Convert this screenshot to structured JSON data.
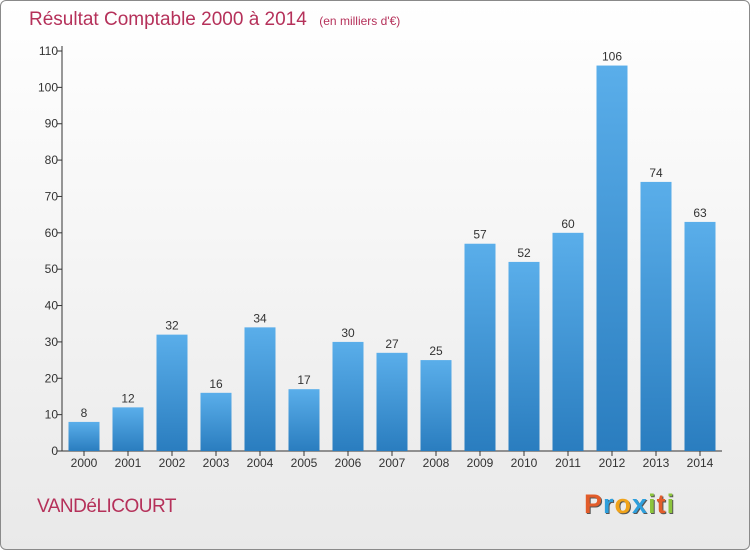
{
  "chart_data": {
    "type": "bar",
    "title": "Résultat Comptable 2000 à 2014",
    "subtitle": "(en milliers d'€)",
    "categories": [
      "2000",
      "2001",
      "2002",
      "2003",
      "2004",
      "2005",
      "2006",
      "2007",
      "2008",
      "2009",
      "2010",
      "2011",
      "2012",
      "2013",
      "2014"
    ],
    "values": [
      8,
      12,
      32,
      16,
      34,
      17,
      30,
      27,
      25,
      57,
      52,
      60,
      106,
      74,
      63
    ],
    "ylim": [
      0,
      110
    ],
    "yticks": [
      0,
      10,
      20,
      30,
      40,
      50,
      60,
      70,
      80,
      90,
      100,
      110
    ],
    "grid": false,
    "xlabel": "",
    "ylabel": ""
  },
  "commune": "VANDéLICOURT",
  "brand": {
    "letters": [
      "P",
      "r",
      "o",
      "x",
      "i",
      "t",
      "i"
    ],
    "colors": [
      "#e25c2a",
      "#2e9fdc",
      "#f0a31a",
      "#2e9fdc",
      "#8cc43d",
      "#e25c2a",
      "#8cc43d"
    ]
  },
  "colors": {
    "accent": "#b5315a",
    "bar_light": "#5aaeea",
    "bar_dark": "#2a7dbf"
  }
}
